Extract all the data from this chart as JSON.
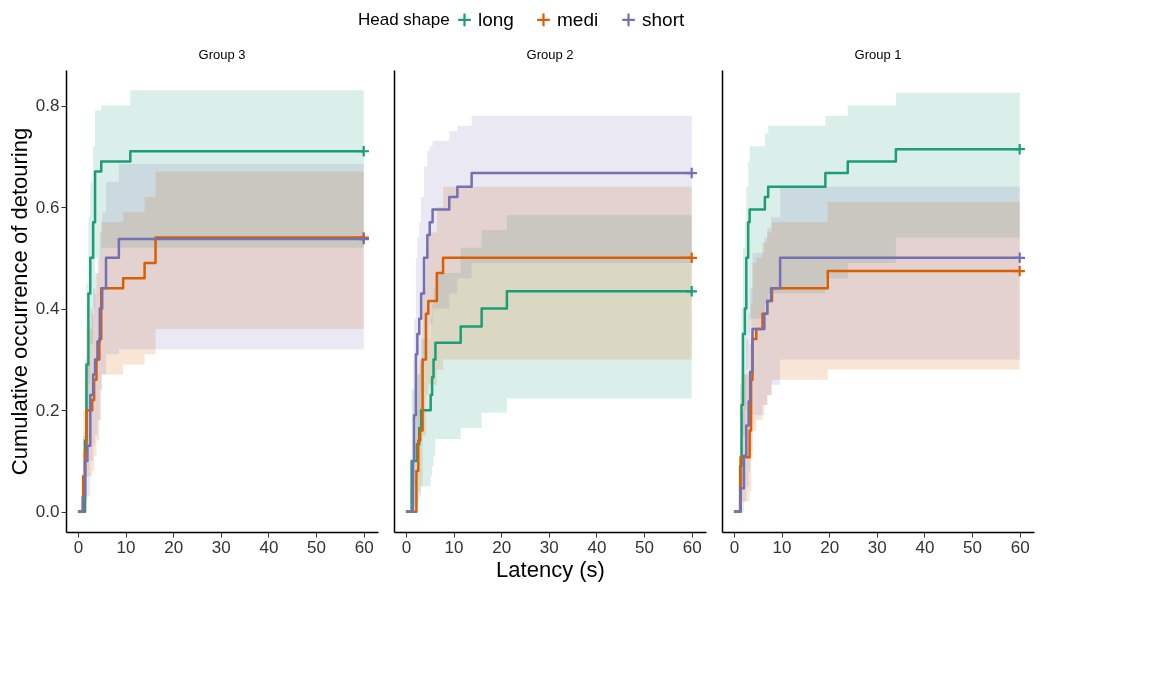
{
  "chart_data": [
    {
      "type": "step",
      "title": "Group 3",
      "ylabel": "Cumulative occurrence of detouring",
      "legend_title": "Head shape",
      "legend": "top",
      "xlim": [
        -2.5,
        63
      ],
      "ylim": [
        -0.04,
        0.87
      ],
      "xticks": [
        0,
        10,
        20,
        30,
        40,
        50,
        60
      ],
      "yticks": [
        {
          "value": 0,
          "label": "0.0"
        },
        0.2,
        0.4,
        0.6,
        0.8
      ],
      "series": [
        {
          "name": "long",
          "color": "#1b9e77",
          "x": [
            0,
            1.5,
            1.8,
            2.2,
            2.6,
            3.2,
            3.6,
            4.9,
            11,
            60
          ],
          "values": [
            0,
            0.14,
            0.29,
            0.43,
            0.5,
            0.57,
            0.67,
            0.69,
            0.71,
            0.71
          ],
          "lower": [
            0,
            0.03,
            0.12,
            0.25,
            0.33,
            0.4,
            0.5,
            0.52,
            0.52,
            0.52
          ],
          "upper": [
            0,
            0.3,
            0.45,
            0.58,
            0.65,
            0.72,
            0.79,
            0.8,
            0.83,
            0.83
          ]
        },
        {
          "name": "medi",
          "color": "#d95f02",
          "x": [
            0,
            1.1,
            1.5,
            1.8,
            3,
            3.4,
            3.9,
            4.5,
            4.9,
            9.5,
            14,
            16.3,
            60
          ],
          "values": [
            0,
            0.07,
            0.12,
            0.2,
            0.22,
            0.26,
            0.3,
            0.34,
            0.44,
            0.46,
            0.49,
            0.54,
            0.54
          ],
          "lower": [
            0,
            0.01,
            0.03,
            0.07,
            0.08,
            0.11,
            0.14,
            0.18,
            0.27,
            0.29,
            0.31,
            0.36,
            0.36
          ],
          "upper": [
            0,
            0.2,
            0.28,
            0.36,
            0.39,
            0.43,
            0.47,
            0.5,
            0.57,
            0.59,
            0.62,
            0.67,
            0.67
          ]
        },
        {
          "name": "short",
          "color": "#7570b3",
          "x": [
            0,
            1,
            1.5,
            2,
            2.6,
            3.2,
            3.6,
            4.1,
            4.6,
            5.1,
            5.9,
            8.6,
            60
          ],
          "values": [
            0,
            0.03,
            0.1,
            0.13,
            0.23,
            0.27,
            0.3,
            0.335,
            0.4,
            0.44,
            0.5,
            0.537,
            0.537
          ],
          "lower": [
            0,
            0,
            0.02,
            0.03,
            0.1,
            0.13,
            0.15,
            0.18,
            0.24,
            0.27,
            0.31,
            0.32,
            0.32
          ],
          "upper": [
            0,
            0.15,
            0.25,
            0.29,
            0.4,
            0.44,
            0.47,
            0.5,
            0.55,
            0.59,
            0.65,
            0.685,
            0.685
          ]
        },
        {
          "type": "scatter",
          "marker": "cross",
          "color": "#1b9e77",
          "x": [
            60
          ],
          "values": [
            0.71
          ]
        },
        {
          "type": "scatter",
          "marker": "cross",
          "color": "#d95f02",
          "x": [
            60
          ],
          "values": [
            0.54
          ]
        },
        {
          "type": "scatter",
          "marker": "cross",
          "color": "#7570b3",
          "x": [
            60
          ],
          "values": [
            0.537
          ]
        }
      ]
    },
    {
      "type": "step",
      "title": "Group 2",
      "xlabel": "Latency (s)",
      "tick_labels": "x",
      "xlim": [
        -2.5,
        63
      ],
      "ylim": [
        -0.04,
        0.87
      ],
      "xticks": [
        0,
        10,
        20,
        30,
        40,
        50,
        60
      ],
      "yticks": [
        0,
        0.2,
        0.4,
        0.6,
        0.8
      ],
      "series": [
        {
          "name": "long",
          "color": "#1b9e77",
          "x": [
            0,
            1.2,
            2.3,
            2.8,
            3.2,
            5.2,
            5.5,
            5.8,
            6.2,
            11.5,
            15.9,
            21.2,
            60
          ],
          "values": [
            0,
            0.1,
            0.133,
            0.165,
            0.2,
            0.23,
            0.265,
            0.3,
            0.333,
            0.365,
            0.4,
            0.434,
            0.434
          ],
          "lower": [
            0,
            0.01,
            0.02,
            0.03,
            0.05,
            0.07,
            0.09,
            0.11,
            0.143,
            0.165,
            0.195,
            0.223,
            0.223
          ],
          "upper": [
            0,
            0.24,
            0.27,
            0.3,
            0.34,
            0.38,
            0.41,
            0.44,
            0.47,
            0.52,
            0.555,
            0.584,
            0.584
          ]
        },
        {
          "name": "medi",
          "color": "#d95f02",
          "x": [
            0,
            2.2,
            2.6,
            3,
            3.5,
            4.2,
            4.7,
            6.5,
            7.8,
            60
          ],
          "values": [
            0,
            0.08,
            0.14,
            0.16,
            0.3,
            0.39,
            0.415,
            0.47,
            0.5,
            0.5
          ],
          "lower": [
            0,
            0.01,
            0.04,
            0.05,
            0.15,
            0.23,
            0.25,
            0.28,
            0.3,
            0.3
          ],
          "upper": [
            0,
            0.2,
            0.27,
            0.29,
            0.44,
            0.52,
            0.55,
            0.6,
            0.64,
            0.64
          ]
        },
        {
          "name": "short",
          "color": "#7570b3",
          "x": [
            0,
            1.5,
            1.7,
            2.1,
            2.4,
            2.8,
            3.2,
            3.8,
            4.5,
            5,
            5.6,
            9.1,
            10.8,
            13.8,
            60
          ],
          "values": [
            0,
            0.1,
            0.19,
            0.31,
            0.35,
            0.38,
            0.43,
            0.5,
            0.545,
            0.57,
            0.595,
            0.62,
            0.64,
            0.667,
            0.667
          ],
          "lower": [
            0,
            0.01,
            0.05,
            0.13,
            0.16,
            0.19,
            0.23,
            0.3,
            0.34,
            0.37,
            0.4,
            0.43,
            0.46,
            0.49,
            0.49
          ],
          "upper": [
            0,
            0.3,
            0.38,
            0.5,
            0.54,
            0.57,
            0.62,
            0.68,
            0.71,
            0.72,
            0.73,
            0.75,
            0.76,
            0.78,
            0.78
          ]
        },
        {
          "type": "scatter",
          "marker": "cross",
          "color": "#1b9e77",
          "x": [
            60
          ],
          "values": [
            0.434
          ]
        },
        {
          "type": "scatter",
          "marker": "cross",
          "color": "#d95f02",
          "x": [
            60
          ],
          "values": [
            0.5
          ]
        },
        {
          "type": "scatter",
          "marker": "cross",
          "color": "#7570b3",
          "x": [
            60
          ],
          "values": [
            0.667
          ]
        }
      ]
    },
    {
      "type": "step",
      "title": "Group 1",
      "tick_labels": "x",
      "xlim": [
        -2.5,
        63
      ],
      "ylim": [
        -0.04,
        0.87
      ],
      "xticks": [
        0,
        10,
        20,
        30,
        40,
        50,
        60
      ],
      "yticks": [
        0,
        0.2,
        0.4,
        0.6,
        0.8
      ],
      "series": [
        {
          "name": "long",
          "color": "#1b9e77",
          "x": [
            0,
            1.3,
            1.6,
            1.9,
            2.3,
            2.6,
            3,
            3.3,
            6.5,
            7.2,
            19.2,
            23.9,
            34,
            60
          ],
          "values": [
            0,
            0.09,
            0.21,
            0.35,
            0.4,
            0.5,
            0.57,
            0.595,
            0.62,
            0.64,
            0.667,
            0.69,
            0.714,
            0.714
          ],
          "lower": [
            0,
            0.01,
            0.06,
            0.15,
            0.2,
            0.28,
            0.35,
            0.38,
            0.41,
            0.43,
            0.46,
            0.49,
            0.54,
            0.54
          ],
          "upper": [
            0,
            0.25,
            0.4,
            0.52,
            0.57,
            0.64,
            0.69,
            0.72,
            0.745,
            0.76,
            0.78,
            0.8,
            0.825,
            0.825
          ]
        },
        {
          "name": "medi",
          "color": "#d95f02",
          "x": [
            0,
            1.4,
            3.3,
            3.6,
            3.9,
            4.7,
            6,
            7,
            8,
            19.7,
            60
          ],
          "values": [
            0,
            0.107,
            0.16,
            0.26,
            0.34,
            0.36,
            0.39,
            0.415,
            0.44,
            0.474,
            0.474
          ],
          "lower": [
            0,
            0.02,
            0.04,
            0.1,
            0.16,
            0.18,
            0.21,
            0.23,
            0.26,
            0.28,
            0.28
          ],
          "upper": [
            0,
            0.27,
            0.33,
            0.41,
            0.49,
            0.5,
            0.53,
            0.55,
            0.57,
            0.61,
            0.61
          ]
        },
        {
          "name": "short",
          "color": "#7570b3",
          "x": [
            0,
            1.4,
            2.1,
            2.6,
            3.1,
            3.4,
            3.9,
            6.4,
            7,
            7.8,
            9.7,
            60
          ],
          "values": [
            0,
            0.046,
            0.11,
            0.17,
            0.217,
            0.275,
            0.36,
            0.39,
            0.415,
            0.44,
            0.5,
            0.5
          ],
          "lower": [
            0,
            0,
            0.02,
            0.05,
            0.08,
            0.12,
            0.19,
            0.21,
            0.23,
            0.25,
            0.3,
            0.3
          ],
          "upper": [
            0,
            0.2,
            0.27,
            0.34,
            0.39,
            0.44,
            0.51,
            0.54,
            0.56,
            0.58,
            0.64,
            0.64
          ]
        },
        {
          "type": "scatter",
          "marker": "cross",
          "color": "#1b9e77",
          "x": [
            60
          ],
          "values": [
            0.714
          ]
        },
        {
          "type": "scatter",
          "marker": "cross",
          "color": "#d95f02",
          "x": [
            60
          ],
          "values": [
            0.474
          ]
        },
        {
          "type": "scatter",
          "marker": "cross",
          "color": "#7570b3",
          "x": [
            60
          ],
          "values": [
            0.5
          ]
        }
      ]
    }
  ]
}
